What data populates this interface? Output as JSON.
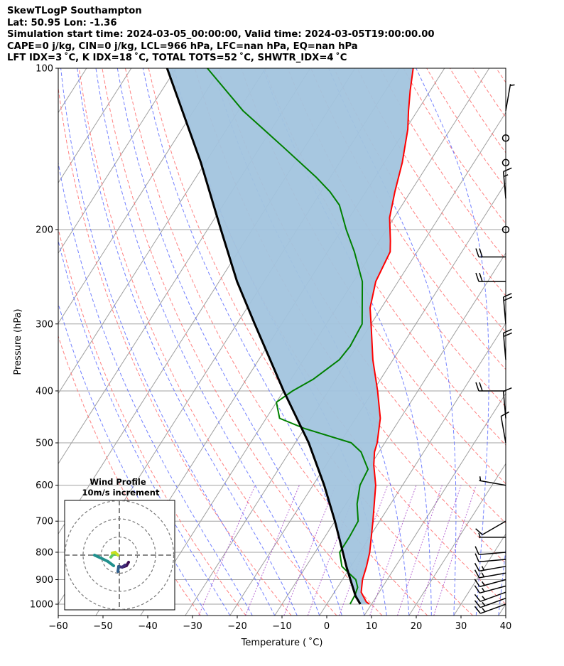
{
  "header": {
    "line1": "SkewTLogP Southampton",
    "line2": "Lat: 50.95   Lon: -1.36",
    "line3": "Simulation start time: 2024-03-05_00:00:00, Valid time: 2024-03-05T19:00:00.00",
    "line4": "CAPE=0 j/kg, CIN=0 j/kg, LCL=966 hPa, LFC=nan hPa, EQ=nan hPa",
    "line5": "LFT IDX=3 ˚C, K IDX=18 ˚C, TOTAL TOTS=52 ˚C, SHWTR_IDX=4 ˚C"
  },
  "chart_data": {
    "type": "skewt",
    "xlabel": "Temperature ( ˚C)",
    "ylabel": "Pressure (hPa)",
    "xlim": [
      -60,
      40
    ],
    "ylim": [
      1050,
      100
    ],
    "x_ticks": [
      "−60",
      "−50",
      "−40",
      "−30",
      "−20",
      "−10",
      "0",
      "10",
      "20",
      "30",
      "40"
    ],
    "y_ticks": [
      "100",
      "200",
      "300",
      "400",
      "500",
      "600",
      "700",
      "800",
      "900",
      "1000"
    ],
    "y_scale": "log",
    "grid": true,
    "colors": {
      "temperature": "#ff0000",
      "dewpoint": "#008000",
      "parcel": "#000000",
      "shading": "#a2c4de",
      "dry_adiabat": "#ff6b6b",
      "moist_adiabat": "#5a6bff",
      "mixing_ratio": "#a545c8",
      "isotherm": "#a0a0a0"
    },
    "temperature_profile": [
      [
        1000,
        9.5
      ],
      [
        990,
        8.5
      ],
      [
        950,
        6
      ],
      [
        900,
        4.5
      ],
      [
        850,
        3.5
      ],
      [
        800,
        2.2
      ],
      [
        700,
        -1.5
      ],
      [
        600,
        -6
      ],
      [
        550,
        -9.3
      ],
      [
        520,
        -11
      ],
      [
        500,
        -11.7
      ],
      [
        450,
        -14.5
      ],
      [
        400,
        -19
      ],
      [
        350,
        -24.5
      ],
      [
        300,
        -30
      ],
      [
        280,
        -32.5
      ],
      [
        250,
        -35
      ],
      [
        220,
        -36
      ],
      [
        210,
        -37.5
      ],
      [
        190,
        -41
      ],
      [
        170,
        -43.5
      ],
      [
        150,
        -46
      ],
      [
        130,
        -49.5
      ],
      [
        120,
        -52
      ],
      [
        110,
        -54.5
      ],
      [
        100,
        -57
      ]
    ],
    "dewpoint_profile": [
      [
        1000,
        5.2
      ],
      [
        960,
        5
      ],
      [
        930,
        4.5
      ],
      [
        900,
        3
      ],
      [
        870,
        0
      ],
      [
        850,
        -2
      ],
      [
        800,
        -4.5
      ],
      [
        750,
        -4.5
      ],
      [
        700,
        -4.8
      ],
      [
        650,
        -7.5
      ],
      [
        600,
        -9.5
      ],
      [
        560,
        -10
      ],
      [
        520,
        -14
      ],
      [
        500,
        -17.5
      ],
      [
        470,
        -30
      ],
      [
        450,
        -37
      ],
      [
        420,
        -40
      ],
      [
        400,
        -38
      ],
      [
        380,
        -35
      ],
      [
        350,
        -32
      ],
      [
        330,
        -31.5
      ],
      [
        300,
        -32
      ],
      [
        250,
        -38
      ],
      [
        220,
        -44
      ],
      [
        200,
        -49
      ],
      [
        180,
        -54
      ],
      [
        170,
        -58
      ],
      [
        160,
        -63
      ],
      [
        140,
        -75
      ],
      [
        120,
        -89
      ],
      [
        100,
        -103
      ]
    ],
    "parcel_profile": [
      [
        1000,
        7.5
      ],
      [
        966,
        5.3
      ],
      [
        900,
        1.8
      ],
      [
        850,
        -1
      ],
      [
        800,
        -3.8
      ],
      [
        700,
        -10
      ],
      [
        600,
        -17.5
      ],
      [
        500,
        -27
      ],
      [
        400,
        -40
      ],
      [
        300,
        -56
      ],
      [
        250,
        -66
      ],
      [
        200,
        -77
      ],
      [
        150,
        -91
      ],
      [
        100,
        -112
      ]
    ],
    "wind_barbs": [
      {
        "p": 1000,
        "speed_kt": 15,
        "dir_deg": 250
      },
      {
        "p": 975,
        "speed_kt": 15,
        "dir_deg": 250
      },
      {
        "p": 950,
        "speed_kt": 15,
        "dir_deg": 250
      },
      {
        "p": 925,
        "speed_kt": 15,
        "dir_deg": 255
      },
      {
        "p": 900,
        "speed_kt": 15,
        "dir_deg": 255
      },
      {
        "p": 875,
        "speed_kt": 15,
        "dir_deg": 260
      },
      {
        "p": 850,
        "speed_kt": 15,
        "dir_deg": 260
      },
      {
        "p": 825,
        "speed_kt": 10,
        "dir_deg": 265
      },
      {
        "p": 800,
        "speed_kt": 10,
        "dir_deg": 265
      },
      {
        "p": 750,
        "speed_kt": 5,
        "dir_deg": 270
      },
      {
        "p": 700,
        "speed_kt": 10,
        "dir_deg": 240
      },
      {
        "p": 600,
        "speed_kt": 5,
        "dir_deg": 280
      },
      {
        "p": 500,
        "speed_kt": 10,
        "dir_deg": 350
      },
      {
        "p": 450,
        "speed_kt": 10,
        "dir_deg": 355
      },
      {
        "p": 400,
        "speed_kt": 20,
        "dir_deg": 270
      },
      {
        "p": 350,
        "speed_kt": 20,
        "dir_deg": 355
      },
      {
        "p": 300,
        "speed_kt": 20,
        "dir_deg": 355
      },
      {
        "p": 250,
        "speed_kt": 20,
        "dir_deg": 270
      },
      {
        "p": 225,
        "speed_kt": 20,
        "dir_deg": 270
      },
      {
        "p": 200,
        "speed_kt": 0,
        "dir_deg": 0
      },
      {
        "p": 175,
        "speed_kt": 15,
        "dir_deg": 355
      },
      {
        "p": 150,
        "speed_kt": 0,
        "dir_deg": 0
      },
      {
        "p": 135,
        "speed_kt": 0,
        "dir_deg": 0
      },
      {
        "p": 120,
        "speed_kt": 5,
        "dir_deg": 10
      }
    ],
    "hodograph": {
      "title_line1": "Wind Profile",
      "title_line2": "10m/s increment",
      "rings_ms": [
        10,
        20,
        30
      ],
      "segments": [
        {
          "color": "#3d0d52",
          "u": [
            3.5,
            1.5,
            0.8
          ]
        },
        {
          "color": "#3f2c7a",
          "u": [
            1.5,
            0.5
          ]
        },
        {
          "color": "#2e5e8c",
          "u": [
            0,
            -1
          ]
        },
        {
          "color": "#21908d",
          "u": [
            -5,
            -9
          ]
        },
        {
          "color": "#5cc863",
          "u": [
            -2,
            0
          ]
        },
        {
          "color": "#c8e020",
          "u": [
            -1,
            1
          ]
        }
      ]
    }
  }
}
